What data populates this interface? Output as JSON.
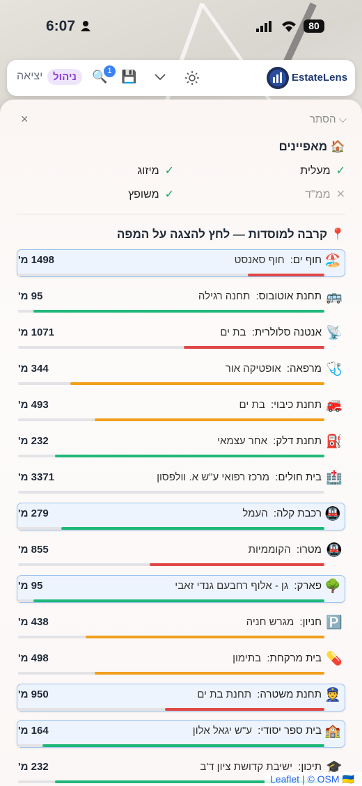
{
  "status_bar": {
    "time": "6:07",
    "battery": "80"
  },
  "toolbar": {
    "logo": "EstateLens",
    "admin": "ניהול",
    "exit": "יציאה",
    "search_badge": "1"
  },
  "panel": {
    "hide": "הסתר",
    "close": "×",
    "features": {
      "icon": "🏠",
      "title": "מאפיינים",
      "items": [
        {
          "label": "מעלית",
          "mark": "✓",
          "available": true
        },
        {
          "label": "מיזוג",
          "mark": "✓",
          "available": true
        },
        {
          "label": "ממ\"ד",
          "mark": "✕",
          "available": false
        },
        {
          "label": "משופץ",
          "mark": "✓",
          "available": true
        }
      ]
    },
    "proximity": {
      "icon": "📍",
      "title": "קרבה למוסדות — לחץ להצגה על המפה",
      "items": [
        {
          "icon": "🏖️",
          "label": "חוף ים:",
          "name": "חוף סאנסט",
          "distance": "1498 מ'",
          "score": 25,
          "color": "#e04848",
          "highlighted": true
        },
        {
          "icon": "🚌",
          "label": "תחנת אוטובוס:",
          "name": "תחנה רגילה",
          "distance": "95 מ'",
          "score": 95,
          "color": "#1fb87a",
          "highlighted": false
        },
        {
          "icon": "📡",
          "label": "אנטנה סלולרית:",
          "name": "בת ים",
          "distance": "1071 מ'",
          "score": 46,
          "color": "#e04848",
          "highlighted": false
        },
        {
          "icon": "🩺",
          "label": "מרפאה:",
          "name": "אופטיקה אור",
          "distance": "344 מ'",
          "score": 83,
          "color": "#f29f1c",
          "highlighted": false
        },
        {
          "icon": "🚒",
          "label": "תחנת כיבוי:",
          "name": "בת ים",
          "distance": "493 מ'",
          "score": 75,
          "color": "#f29f1c",
          "highlighted": false
        },
        {
          "icon": "⛽",
          "label": "תחנת דלק:",
          "name": "אחר עצמאי",
          "distance": "232 מ'",
          "score": 88,
          "color": "#1fb87a",
          "highlighted": false
        },
        {
          "icon": "🏥",
          "label": "בית חולים:",
          "name": "מרכז רפואי ע\"ש א. וולפסון",
          "distance": "3371 מ'",
          "score": 0,
          "color": "#e04848",
          "highlighted": false
        },
        {
          "icon": "🚇",
          "label": "רכבת קלה:",
          "name": "העמל",
          "distance": "279 מ'",
          "score": 86,
          "color": "#1fb87a",
          "highlighted": true
        },
        {
          "icon": "🚇",
          "label": "מטרו:",
          "name": "הקוממיות",
          "distance": "855 מ'",
          "score": 57,
          "color": "#e04848",
          "highlighted": false
        },
        {
          "icon": "🌳",
          "label": "פארק:",
          "name": "גן - אלוף רחבעם גנדי זאבי",
          "distance": "95 מ'",
          "score": 95,
          "color": "#1fb87a",
          "highlighted": true
        },
        {
          "icon": "🅿️",
          "label": "חניון:",
          "name": "מגרש חניה",
          "distance": "438 מ'",
          "score": 78,
          "color": "#f29f1c",
          "highlighted": false
        },
        {
          "icon": "💊",
          "label": "בית מרקחת:",
          "name": "בתימון",
          "distance": "498 מ'",
          "score": 75,
          "color": "#f29f1c",
          "highlighted": false
        },
        {
          "icon": "👮",
          "label": "תחנת משטרה:",
          "name": "תחנת בת ים",
          "distance": "950 מ'",
          "score": 52,
          "color": "#e04848",
          "highlighted": true
        },
        {
          "icon": "🏫",
          "label": "בית ספר יסודי:",
          "name": "ע\"ש יגאל אלון",
          "distance": "164 מ'",
          "score": 92,
          "color": "#1fb87a",
          "highlighted": true
        },
        {
          "icon": "🎓",
          "label": "תיכון:",
          "name": "ישיבת קדושת ציון ד'ב",
          "distance": "232 מ'",
          "score": 88,
          "color": "#1fb87a",
          "highlighted": false
        }
      ]
    }
  },
  "attribution": {
    "leaflet": "Leaflet",
    "osm": "| © OSM 🇺🇦"
  }
}
